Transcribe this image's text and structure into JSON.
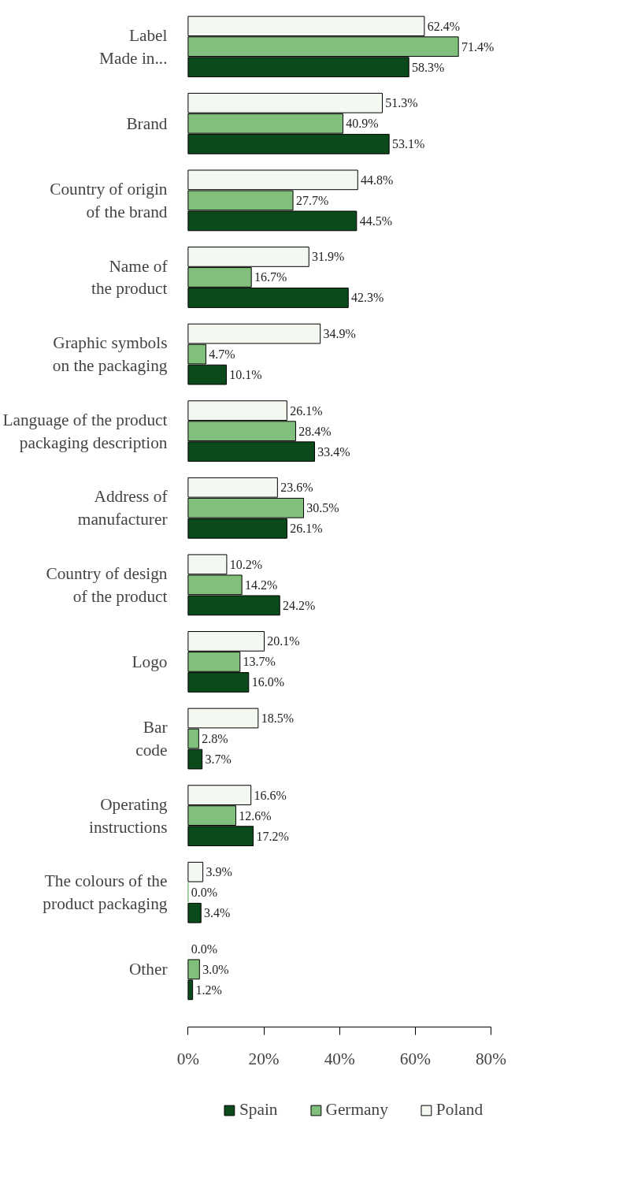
{
  "chart_data": {
    "type": "bar",
    "orientation": "horizontal",
    "categories": [
      "Label\nMade in...",
      "Brand",
      "Country of origin\nof the brand",
      "Name of\nthe product",
      "Graphic symbols\non the packaging",
      "Language of the product\npackaging description",
      "Address of\nmanufacturer",
      "Country of design\nof the product",
      "Logo",
      "Bar\ncode",
      "Operating\ninstructions",
      "The colours of the\nproduct packaging",
      "Other"
    ],
    "series": [
      {
        "name": "Poland",
        "color": "#f3f8f1",
        "values": [
          62.4,
          51.3,
          44.8,
          31.9,
          34.9,
          26.1,
          23.6,
          10.2,
          20.1,
          18.5,
          16.6,
          3.9,
          0.0
        ],
        "value_labels": [
          "62.4%",
          "51.3%",
          "44.8%",
          "31.9%",
          "34.9%",
          "26.1%",
          "23.6%",
          "10.2%",
          "20.1%",
          "18.5%",
          "16.6%",
          "3.9%",
          "0.0%"
        ]
      },
      {
        "name": "Germany",
        "color": "#80c07c",
        "values": [
          71.4,
          40.9,
          27.7,
          16.7,
          4.7,
          28.4,
          30.5,
          14.2,
          13.7,
          2.8,
          12.6,
          0.0,
          3.0
        ],
        "value_labels": [
          "71.4%",
          "40.9%",
          "27.7%",
          "16.7%",
          "4.7%",
          "28.4%",
          "30.5%",
          "14.2%",
          "13.7%",
          "2.8%",
          "12.6%",
          "0.0%",
          "3.0%"
        ]
      },
      {
        "name": "Spain",
        "color": "#0b4a1a",
        "values": [
          58.3,
          53.1,
          44.5,
          42.3,
          10.1,
          33.4,
          26.1,
          24.2,
          16.0,
          3.7,
          17.2,
          3.4,
          1.2
        ],
        "value_labels": [
          "58.3%",
          "53.1%",
          "44.5%",
          "42.3%",
          "10.1%",
          "33.4%",
          "26.1%",
          "24.2%",
          "16.0%",
          "3.7%",
          "17.2%",
          "3.4%",
          "1.2%"
        ]
      }
    ],
    "xlim": [
      0,
      80
    ],
    "xticks": [
      {
        "value": 0,
        "label": "0%"
      },
      {
        "value": 20,
        "label": "20%"
      },
      {
        "value": 40,
        "label": "40%"
      },
      {
        "value": 60,
        "label": "60%"
      },
      {
        "value": 80,
        "label": "80%"
      }
    ],
    "grid": false,
    "legend": "bottom"
  }
}
